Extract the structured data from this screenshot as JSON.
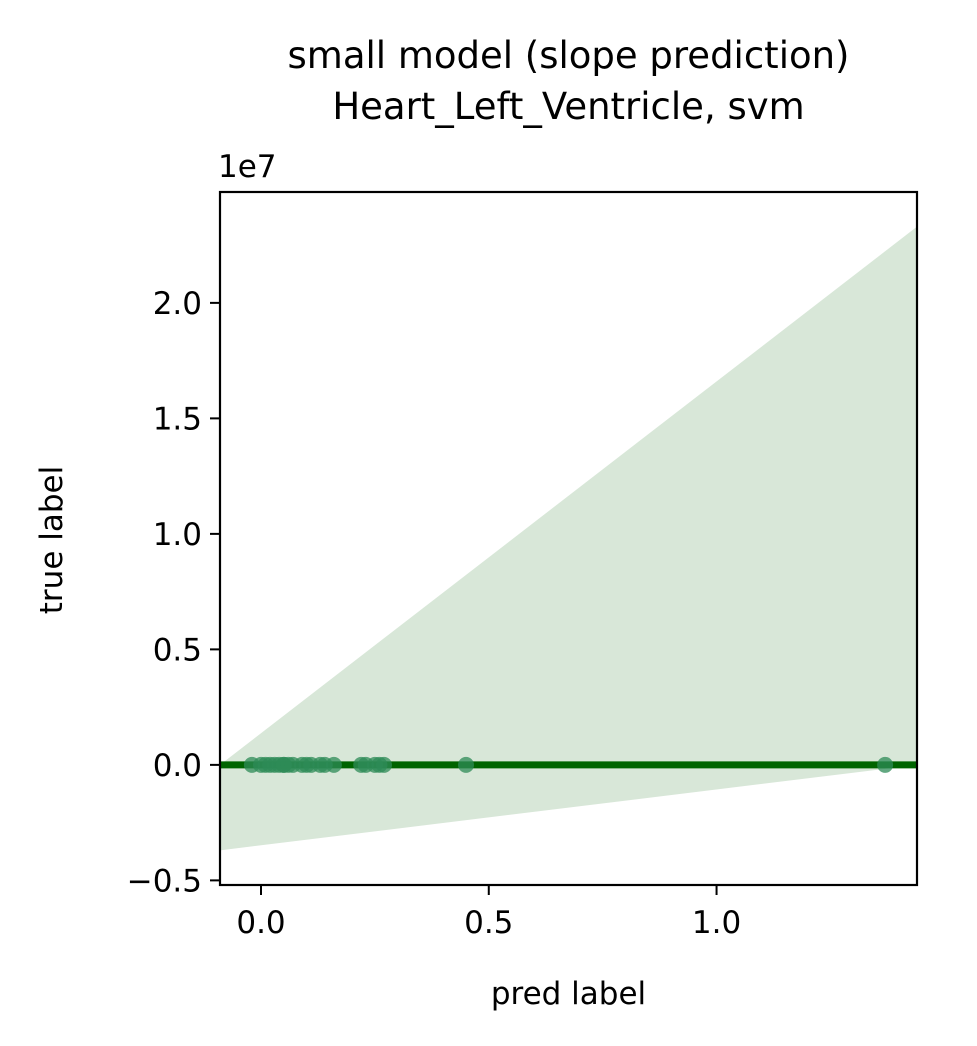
{
  "chart_data": {
    "type": "scatter",
    "title": "small model (slope prediction)",
    "subtitle": "Heart_Left_Ventricle, svm",
    "xlabel": "pred label",
    "ylabel": "true label",
    "y_offset_label": "1e7",
    "xlim": [
      -0.09,
      1.44
    ],
    "ylim": [
      -0.52,
      2.48
    ],
    "xticks": [
      0.0,
      0.5,
      1.0
    ],
    "xtick_labels": [
      "0.0",
      "0.5",
      "1.0"
    ],
    "yticks": [
      -0.5,
      0.0,
      0.5,
      1.0,
      1.5,
      2.0
    ],
    "ytick_labels": [
      "−0.5",
      "0.0",
      "0.5",
      "1.0",
      "1.5",
      "2.0"
    ],
    "grid": false,
    "points": {
      "x": [
        -0.02,
        0.0,
        0.01,
        0.02,
        0.03,
        0.04,
        0.05,
        0.05,
        0.06,
        0.07,
        0.09,
        0.1,
        0.11,
        0.13,
        0.14,
        0.16,
        0.22,
        0.23,
        0.25,
        0.26,
        0.27,
        0.45,
        1.37
      ],
      "y": [
        0,
        0,
        0,
        0,
        0,
        0,
        0,
        0,
        0,
        0,
        0,
        0,
        0,
        0,
        0,
        0,
        0,
        0,
        0,
        0,
        0,
        0,
        0
      ]
    },
    "regression_line": {
      "x": [
        -0.09,
        1.44
      ],
      "y": [
        0.0,
        0.0
      ]
    },
    "confidence_band": {
      "x": [
        -0.09,
        1.44
      ],
      "lower": [
        -0.37,
        0.0
      ],
      "upper": [
        0.0,
        2.33
      ]
    },
    "colors": {
      "points": "#2e8b57",
      "line": "#006400",
      "band": "#d8e7d8"
    }
  }
}
